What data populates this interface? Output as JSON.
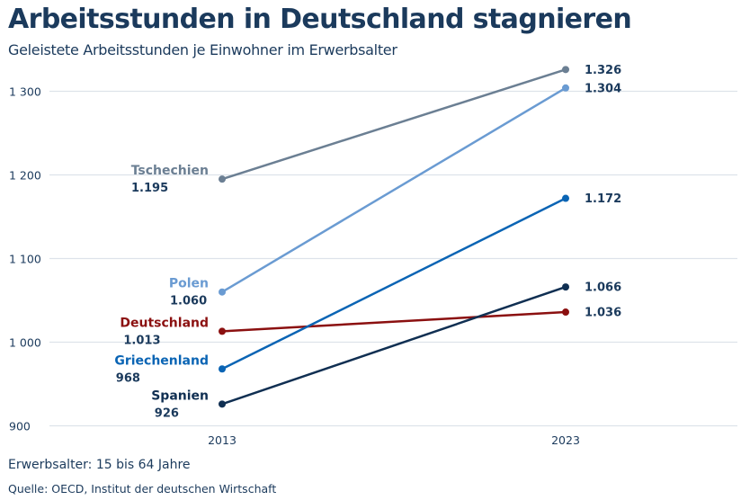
{
  "title": "Arbeitsstunden in Deutschland stagnieren",
  "subtitle": "Geleistete Arbeitsstunden je Einwohner im Erwerbsalter",
  "note": "Erwerbsalter: 15 bis 64 Jahre",
  "source": "Quelle: OECD, Institut der deutschen Wirtschaft",
  "chart_data": {
    "type": "line",
    "categories": [
      "2013",
      "2023"
    ],
    "ylim": [
      900,
      1340
    ],
    "yticks": [
      900,
      1000,
      1100,
      1200,
      1300
    ],
    "ytick_labels": [
      "900",
      "1 000",
      "1 100",
      "1 200",
      "1 300"
    ],
    "grid": true,
    "series": [
      {
        "name": "Tschechien",
        "values": [
          1195,
          1326
        ],
        "labels": [
          "1.195",
          "1.326"
        ],
        "color": "#6b7f93"
      },
      {
        "name": "Polen",
        "values": [
          1060,
          1304
        ],
        "labels": [
          "1.060",
          "1.304"
        ],
        "color": "#6a9bd2"
      },
      {
        "name": "Deutschland",
        "values": [
          1013,
          1036
        ],
        "labels": [
          "1.013",
          "1.036"
        ],
        "color": "#8b1010"
      },
      {
        "name": "Griechenland",
        "values": [
          968,
          1172
        ],
        "labels": [
          "968",
          "1.172"
        ],
        "color": "#0a64b4"
      },
      {
        "name": "Spanien",
        "values": [
          926,
          1066
        ],
        "labels": [
          "926",
          "1.066"
        ],
        "color": "#102f52"
      }
    ],
    "value_label_color": "#1b3a5c"
  }
}
